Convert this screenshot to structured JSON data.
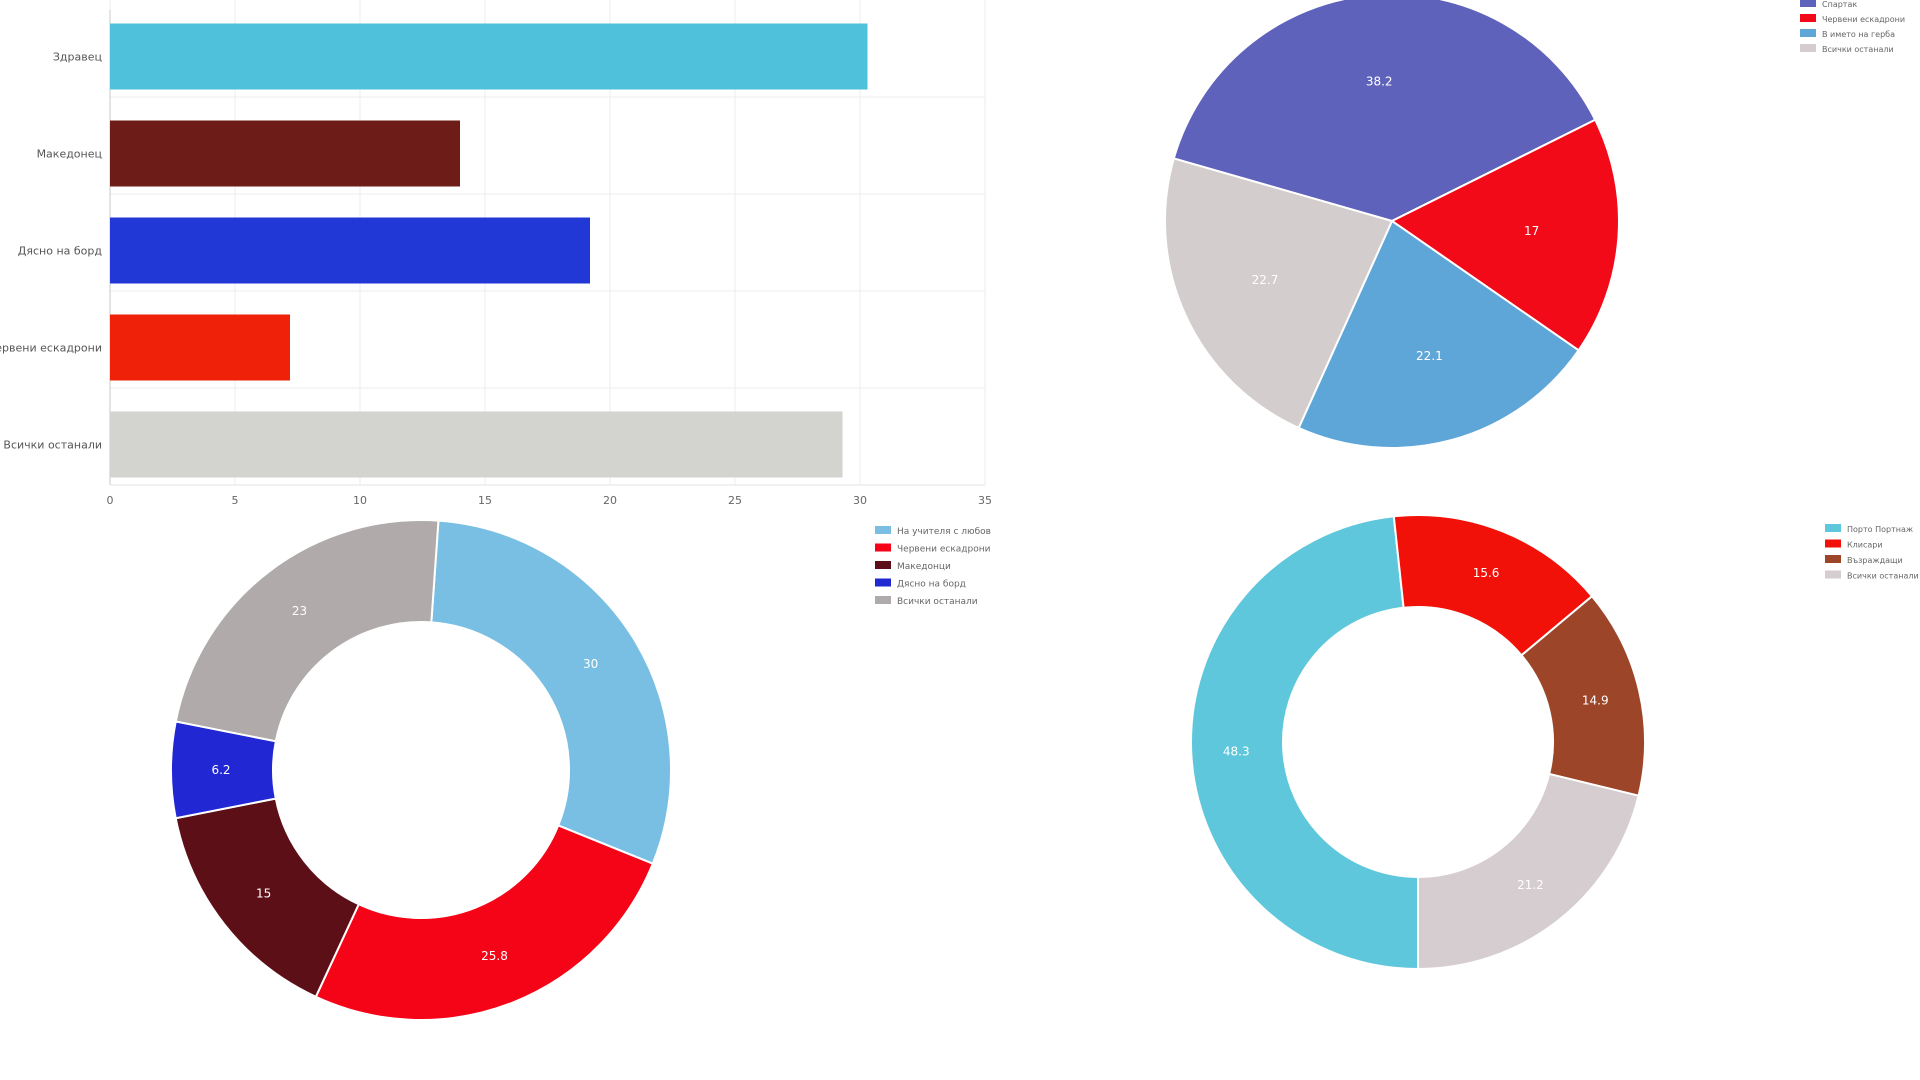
{
  "chart_data": [
    {
      "type": "bar",
      "orientation": "horizontal",
      "categories": [
        "Здравец",
        "Македонец",
        "Дясно на борд",
        "Червени ескадрони",
        "Всички останали"
      ],
      "values": [
        30.3,
        14.0,
        19.2,
        7.2,
        29.3
      ],
      "colors": [
        "#4fc1db",
        "#6e1c18",
        "#2138d6",
        "#ef2109",
        "#d3d3cf"
      ],
      "xlim": [
        0,
        35
      ],
      "xticks": [
        "0",
        "5",
        "10",
        "15",
        "20",
        "25",
        "30",
        "35"
      ],
      "grid": true
    },
    {
      "type": "pie",
      "labels": [
        "Спартак",
        "Червени ескадрони",
        "В името на герба",
        "Всички останали"
      ],
      "values": [
        38.2,
        17,
        22.1,
        22.7
      ],
      "value_labels": [
        "38.2",
        "17",
        "22.1",
        "22.7"
      ],
      "colors": [
        "#5e62bb",
        "#f20a19",
        "#5fa6d8",
        "#d3cdcd"
      ],
      "legend": "top-right"
    },
    {
      "type": "donut",
      "labels": [
        "На учителя с любов",
        "Червени ескадрони",
        "Македонци",
        "Дясно на борд",
        "Всички останали"
      ],
      "values": [
        30,
        25.8,
        15,
        6.2,
        23
      ],
      "value_labels": [
        "30",
        "25.8",
        "15",
        "6.2",
        "23"
      ],
      "colors": [
        "#78bfe3",
        "#f50317",
        "#5d0f17",
        "#2128d3",
        "#b0aaaa"
      ],
      "legend": "top-right"
    },
    {
      "type": "donut",
      "labels": [
        "Порто Портнаж",
        "Клисари",
        "Възраждащи",
        "Всички останали"
      ],
      "values": [
        48.3,
        15.6,
        14.9,
        21.2
      ],
      "value_labels": [
        "48.3",
        "15.6",
        "14.9",
        "21.2"
      ],
      "colors": [
        "#5fc7db",
        "#f11108",
        "#9d4529",
        "#d5cdd0"
      ],
      "legend": "top-right"
    }
  ]
}
